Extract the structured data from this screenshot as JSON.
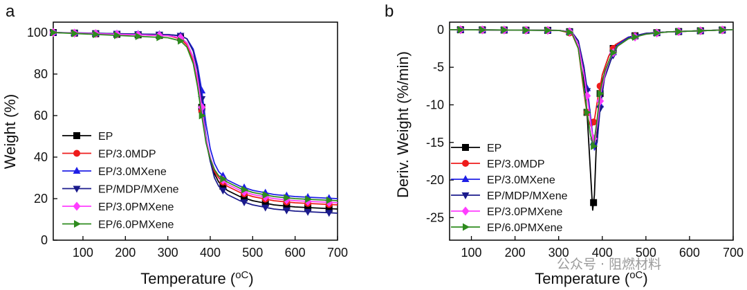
{
  "watermark": "公众号 · 阻燃材料",
  "series_styles": [
    {
      "name": "EP",
      "color": "#000000",
      "marker": "square"
    },
    {
      "name": "EP/3.0MDP",
      "color": "#ee1c1c",
      "marker": "circle"
    },
    {
      "name": "EP/3.0MXene",
      "color": "#1f1fe6",
      "marker": "triangle-up"
    },
    {
      "name": "EP/MDP/MXene",
      "color": "#1a1a8c",
      "marker": "triangle-down"
    },
    {
      "name": "EP/3.0PMXene",
      "color": "#ff3dff",
      "marker": "diamond"
    },
    {
      "name": "EP/6.0PMXene",
      "color": "#2e8b1e",
      "marker": "triangle-right"
    }
  ],
  "chart_data": [
    {
      "panel": "a",
      "type": "line",
      "xlabel": "Temperature (",
      "xlabel_unit": "oC",
      "ylabel": "Weight (%)",
      "xlim": [
        30,
        700
      ],
      "ylim": [
        0,
        105
      ],
      "xticks": [
        100,
        200,
        300,
        400,
        500,
        600,
        700
      ],
      "yticks": [
        0,
        20,
        40,
        60,
        80,
        100
      ],
      "legend_position": "lower-left",
      "series": [
        {
          "name": "EP",
          "x": [
            30,
            300,
            330,
            345,
            360,
            370,
            380,
            390,
            400,
            410,
            420,
            440,
            470,
            500,
            550,
            600,
            650,
            700
          ],
          "y": [
            100,
            98.5,
            97.5,
            95,
            88,
            78,
            64,
            48,
            38,
            32,
            28,
            24,
            21,
            19,
            17,
            16,
            15.5,
            15
          ]
        },
        {
          "name": "EP/3.0MDP",
          "x": [
            30,
            300,
            330,
            345,
            360,
            370,
            380,
            390,
            400,
            410,
            420,
            440,
            470,
            500,
            550,
            600,
            650,
            700
          ],
          "y": [
            100,
            98.5,
            97,
            94,
            86,
            76,
            62,
            48,
            39,
            33,
            30,
            26,
            23,
            21,
            19,
            18,
            17.5,
            17
          ]
        },
        {
          "name": "EP/3.0MXene",
          "x": [
            30,
            300,
            330,
            345,
            360,
            370,
            380,
            390,
            400,
            410,
            420,
            440,
            470,
            500,
            550,
            600,
            650,
            700
          ],
          "y": [
            100,
            99,
            98.5,
            97,
            92,
            84,
            72,
            56,
            44,
            37,
            33,
            29,
            26,
            24,
            22,
            21,
            20.5,
            20
          ]
        },
        {
          "name": "EP/MDP/MXene",
          "x": [
            30,
            300,
            330,
            345,
            360,
            370,
            380,
            390,
            400,
            410,
            420,
            440,
            470,
            500,
            550,
            600,
            650,
            700
          ],
          "y": [
            100,
            99,
            98.5,
            97,
            91,
            82,
            68,
            50,
            38,
            30,
            26,
            22,
            19,
            17,
            15,
            14,
            13.5,
            13
          ]
        },
        {
          "name": "EP/3.0PMXene",
          "x": [
            30,
            300,
            330,
            345,
            360,
            370,
            380,
            390,
            400,
            410,
            420,
            440,
            470,
            500,
            550,
            600,
            650,
            700
          ],
          "y": [
            100,
            98.5,
            97.5,
            95,
            88,
            78,
            64,
            49,
            40,
            34,
            31,
            27,
            24,
            22,
            20,
            19,
            18.5,
            18
          ]
        },
        {
          "name": "EP/6.0PMXene",
          "x": [
            30,
            300,
            330,
            345,
            360,
            370,
            380,
            390,
            400,
            410,
            420,
            440,
            470,
            500,
            550,
            600,
            650,
            700
          ],
          "y": [
            100,
            97.5,
            96,
            93,
            85,
            74,
            60,
            47,
            39,
            34,
            31,
            28,
            25,
            23,
            21,
            20,
            19.5,
            19
          ]
        }
      ]
    },
    {
      "panel": "b",
      "type": "line",
      "xlabel": "Temperature (",
      "xlabel_unit": "oC",
      "ylabel": "Deriv. Weight (%/min)",
      "xlim": [
        50,
        700
      ],
      "ylim": [
        -28,
        1
      ],
      "xticks": [
        100,
        200,
        300,
        400,
        500,
        600,
        700
      ],
      "yticks": [
        0,
        -5,
        -10,
        -15,
        -20,
        -25
      ],
      "legend_position": "lower-left",
      "series": [
        {
          "name": "EP",
          "x": [
            50,
            300,
            330,
            345,
            355,
            365,
            372,
            378,
            382,
            386,
            392,
            400,
            415,
            430,
            460,
            500,
            550,
            600,
            650,
            700
          ],
          "y": [
            0,
            -0.1,
            -0.3,
            -1.5,
            -5,
            -11,
            -18,
            -24,
            -22,
            -16,
            -10,
            -6,
            -3.5,
            -2,
            -1,
            -0.5,
            -0.3,
            -0.2,
            -0.1,
            0
          ]
        },
        {
          "name": "EP/3.0MDP",
          "x": [
            50,
            300,
            330,
            345,
            355,
            362,
            368,
            375,
            382,
            390,
            400,
            415,
            430,
            460,
            500,
            550,
            600,
            650,
            700
          ],
          "y": [
            0,
            -0.1,
            -0.5,
            -2.5,
            -7,
            -10,
            -12,
            -13,
            -12,
            -9,
            -6,
            -3.5,
            -2,
            -1,
            -0.5,
            -0.3,
            -0.2,
            -0.1,
            0
          ]
        },
        {
          "name": "EP/3.0MXene",
          "x": [
            50,
            300,
            330,
            345,
            358,
            368,
            376,
            382,
            388,
            395,
            405,
            420,
            435,
            460,
            500,
            550,
            600,
            650,
            700
          ],
          "y": [
            0,
            -0.1,
            -0.3,
            -1.5,
            -5,
            -9,
            -13,
            -16,
            -15,
            -10,
            -6,
            -3.5,
            -2,
            -1,
            -0.5,
            -0.3,
            -0.2,
            -0.1,
            0
          ]
        },
        {
          "name": "EP/MDP/MXene",
          "x": [
            50,
            300,
            330,
            345,
            358,
            368,
            376,
            382,
            388,
            395,
            405,
            420,
            435,
            460,
            500,
            550,
            600,
            650,
            700
          ],
          "y": [
            0,
            -0.1,
            -0.3,
            -1.5,
            -5,
            -9.5,
            -13.5,
            -15.5,
            -15,
            -10.5,
            -6.5,
            -4,
            -2.2,
            -1.1,
            -0.5,
            -0.3,
            -0.2,
            -0.1,
            0
          ]
        },
        {
          "name": "EP/3.0PMXene",
          "x": [
            50,
            300,
            330,
            345,
            358,
            368,
            376,
            382,
            390,
            398,
            408,
            420,
            435,
            460,
            500,
            550,
            600,
            650,
            700
          ],
          "y": [
            0,
            -0.1,
            -0.3,
            -2,
            -6,
            -10,
            -13.5,
            -15,
            -12,
            -8,
            -5.5,
            -3.5,
            -2.2,
            -1.2,
            -0.6,
            -0.3,
            -0.2,
            -0.1,
            0
          ]
        },
        {
          "name": "EP/6.0PMXene",
          "x": [
            50,
            300,
            330,
            345,
            356,
            365,
            373,
            380,
            388,
            396,
            406,
            420,
            435,
            460,
            500,
            550,
            600,
            650,
            700
          ],
          "y": [
            0,
            -0.1,
            -0.4,
            -2.5,
            -7,
            -11,
            -14,
            -15.5,
            -12,
            -8,
            -5.5,
            -3.5,
            -2.2,
            -1.2,
            -0.6,
            -0.3,
            -0.2,
            -0.1,
            0
          ]
        }
      ]
    }
  ]
}
